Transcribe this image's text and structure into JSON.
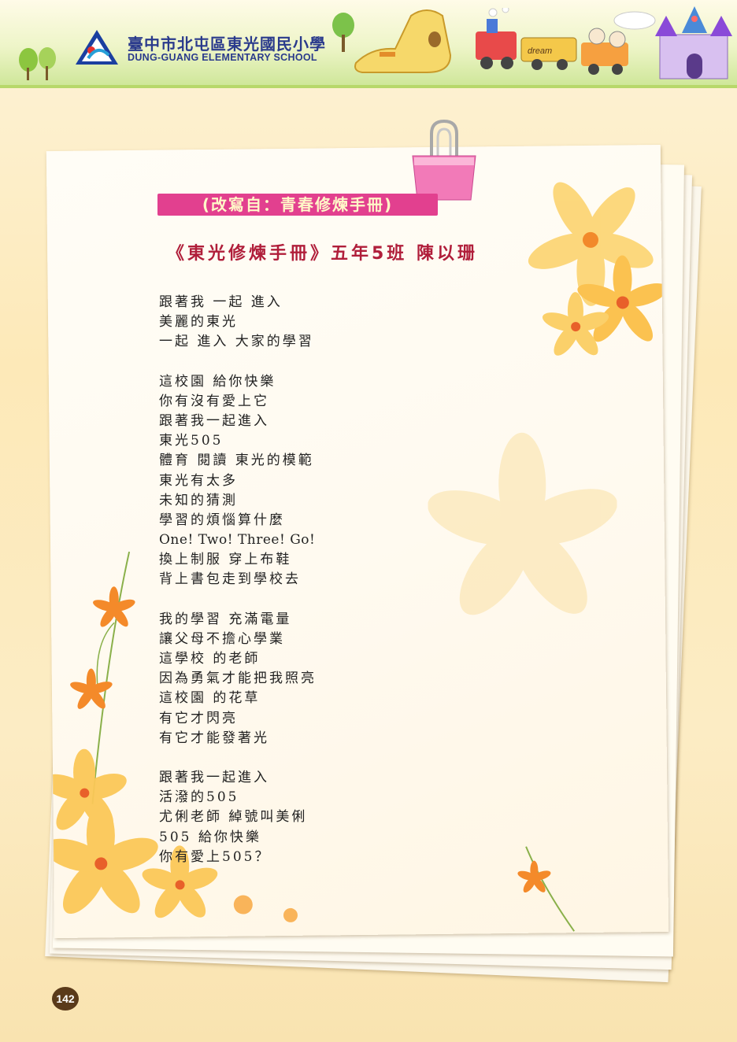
{
  "header": {
    "school_name_cn": "臺中市北屯區東光國民小學",
    "school_name_en": "DUNG-GUANG ELEMENTARY SCHOOL",
    "train_sign": "dream"
  },
  "tag_label": "(改寫自：青春修煉手冊)",
  "title": "《東光修煉手冊》五年5班  陳以珊",
  "poem": {
    "stanzas": [
      [
        "跟著我 一起 進入",
        "美麗的東光",
        "一起 進入 大家的學習"
      ],
      [
        "這校園 給你快樂",
        "你有沒有愛上它",
        "跟著我一起進入",
        "東光505",
        "體育 閱讀 東光的模範",
        "東光有太多",
        "未知的猜測",
        "學習的煩惱算什麼",
        "One! Two! Three! Go!",
        "換上制服 穿上布鞋",
        "背上書包走到學校去"
      ],
      [
        "我的學習 充滿電量",
        "讓父母不擔心學業",
        "這學校 的老師",
        "因為勇氣才能把我照亮",
        "這校園 的花草",
        "有它才閃亮",
        "有它才能發著光"
      ],
      [
        "跟著我一起進入",
        "活潑的505",
        "尤俐老師 綽號叫美俐",
        "505 給你快樂",
        "你有愛上505？"
      ]
    ]
  },
  "page_number": "142",
  "colors": {
    "tag_bg": "#e2408f",
    "title": "#b01e3a",
    "school_name": "#2a3a8c"
  }
}
